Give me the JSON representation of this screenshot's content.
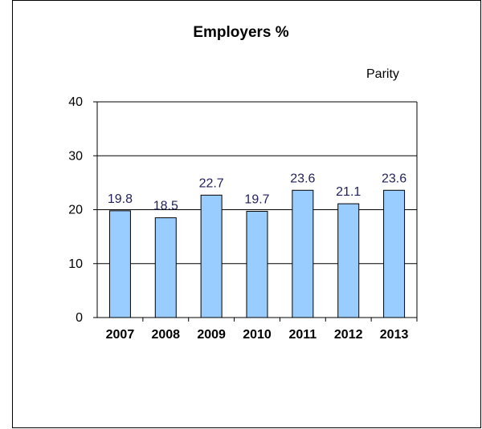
{
  "chart_data": {
    "type": "bar",
    "title": "Employers %",
    "annotation": "Parity",
    "categories": [
      "2007",
      "2008",
      "2009",
      "2010",
      "2011",
      "2012",
      "2013"
    ],
    "values": [
      19.8,
      18.5,
      22.7,
      19.7,
      23.6,
      21.1,
      23.6
    ],
    "data_labels": [
      "19.8",
      "18.5",
      "22.7",
      "19.7",
      "23.6",
      "21.1",
      "23.6"
    ],
    "ylim": [
      0,
      40
    ],
    "yticks": [
      0,
      10,
      20,
      30,
      40
    ],
    "grid": true,
    "bar_color": "#99ccff",
    "bar_edge_color": "#000000",
    "label_color": "#1f1f5c",
    "xlabel": "",
    "ylabel": ""
  }
}
